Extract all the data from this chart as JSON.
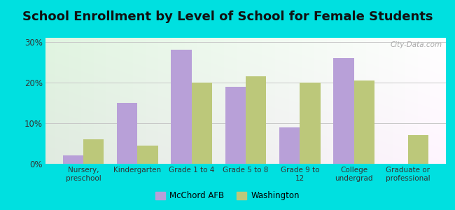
{
  "title": "School Enrollment by Level of School for Female Students",
  "categories": [
    "Nursery,\npreschool",
    "Kindergarten",
    "Grade 1 to 4",
    "Grade 5 to 8",
    "Grade 9 to\n12",
    "College\nundergrad",
    "Graduate or\nprofessional"
  ],
  "mcchord_values": [
    2,
    15,
    28,
    19,
    9,
    26,
    0
  ],
  "washington_values": [
    6,
    4.5,
    20,
    21.5,
    20,
    20.5,
    7
  ],
  "mcchord_color": "#b8a0d8",
  "washington_color": "#bcc87a",
  "background_outer": "#00e0e0",
  "background_inner_topleft": "#e8f5e0",
  "background_inner_bottomright": "#f8fff8",
  "grid_color": "#c8c8c8",
  "title_fontsize": 13,
  "ylabel_ticks": [
    0,
    10,
    20,
    30
  ],
  "ylabel_labels": [
    "0%",
    "10%",
    "20%",
    "30%"
  ],
  "ylim": [
    0,
    31
  ],
  "bar_width": 0.38,
  "legend_labels": [
    "McChord AFB",
    "Washington"
  ],
  "watermark": "City-Data.com"
}
